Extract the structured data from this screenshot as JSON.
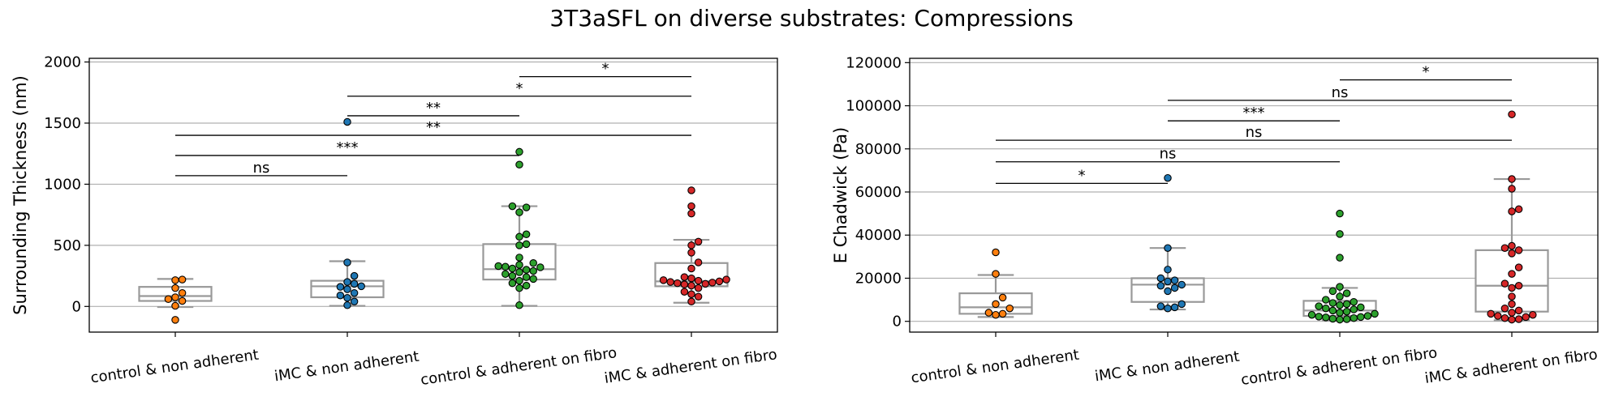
{
  "figure_title": "3T3aSFL on diverse substrates: Compressions",
  "colors": {
    "control & non adherent": "#ff7f0e",
    "iMC & non adherent": "#1f77b4",
    "control & adherent on fibro": "#2ca02c",
    "iMC & adherent on fibro": "#d62728",
    "box": "#999999",
    "grid": "#b0b0b0"
  },
  "chart_data": [
    {
      "type": "box",
      "title": "",
      "ylabel": "Surrounding Thickness (nm)",
      "xlabel": "",
      "grid": "y",
      "ylim": [
        -210,
        2030
      ],
      "yticks": [
        0,
        500,
        1000,
        1500,
        2000
      ],
      "categories": [
        "control & non adherent",
        "iMC & non adherent",
        "control & adherent on fibro",
        "iMC & adherent on fibro"
      ],
      "boxes": [
        {
          "whisker_low": -5,
          "q1": 45,
          "median": 85,
          "q3": 160,
          "whisker_high": 225
        },
        {
          "whisker_low": 5,
          "q1": 75,
          "median": 165,
          "q3": 210,
          "whisker_high": 370
        },
        {
          "whisker_low": 5,
          "q1": 220,
          "median": 305,
          "q3": 510,
          "whisker_high": 820
        },
        {
          "whisker_low": 30,
          "q1": 165,
          "median": 205,
          "q3": 355,
          "whisker_high": 545
        }
      ],
      "points": [
        [
          220,
          215,
          150,
          110,
          75,
          60,
          45,
          5,
          -110
        ],
        [
          1510,
          360,
          250,
          200,
          185,
          165,
          160,
          140,
          110,
          90,
          70,
          40,
          10
        ],
        [
          1265,
          1160,
          820,
          810,
          770,
          590,
          570,
          510,
          500,
          400,
          355,
          340,
          330,
          325,
          320,
          310,
          300,
          290,
          280,
          265,
          250,
          240,
          225,
          210,
          190,
          170,
          150,
          10
        ],
        [
          950,
          820,
          760,
          530,
          500,
          440,
          360,
          310,
          240,
          230,
          220,
          215,
          210,
          205,
          200,
          195,
          190,
          185,
          180,
          170,
          150,
          120,
          100,
          80,
          40
        ]
      ],
      "annotations": [
        {
          "from": 0,
          "to": 1,
          "y": 1070,
          "text": "ns"
        },
        {
          "from": 0,
          "to": 2,
          "y": 1235,
          "text": "***"
        },
        {
          "from": 0,
          "to": 3,
          "y": 1400,
          "text": "**"
        },
        {
          "from": 1,
          "to": 2,
          "y": 1560,
          "text": "**"
        },
        {
          "from": 1,
          "to": 3,
          "y": 1720,
          "text": "*"
        },
        {
          "from": 2,
          "to": 3,
          "y": 1880,
          "text": "*"
        }
      ]
    },
    {
      "type": "box",
      "title": "",
      "ylabel": "E Chadwick (Pa)",
      "xlabel": "",
      "grid": "y",
      "ylim": [
        -5000,
        122000
      ],
      "yticks": [
        0,
        20000,
        40000,
        60000,
        80000,
        100000,
        120000
      ],
      "categories": [
        "control & non adherent",
        "iMC & non adherent",
        "control & adherent on fibro",
        "iMC & adherent on fibro"
      ],
      "boxes": [
        {
          "whisker_low": 2000,
          "q1": 3500,
          "median": 6500,
          "q3": 13000,
          "whisker_high": 21500
        },
        {
          "whisker_low": 5500,
          "q1": 9000,
          "median": 17000,
          "q3": 20000,
          "whisker_high": 34000
        },
        {
          "whisker_low": 500,
          "q1": 2500,
          "median": 5000,
          "q3": 9500,
          "whisker_high": 15500
        },
        {
          "whisker_low": 500,
          "q1": 4500,
          "median": 16500,
          "q3": 33000,
          "whisker_high": 66000
        }
      ],
      "points": [
        [
          32000,
          22000,
          11000,
          8000,
          6000,
          4000,
          3500,
          3000
        ],
        [
          66500,
          34000,
          24000,
          20000,
          19000,
          18500,
          17000,
          16500,
          15500,
          14000,
          8000,
          7000,
          6500,
          6000
        ],
        [
          50000,
          40500,
          29500,
          16000,
          14000,
          13000,
          11500,
          10000,
          9000,
          8500,
          8000,
          7500,
          7000,
          6500,
          6000,
          5500,
          5000,
          4500,
          4000,
          3500,
          3000,
          2500,
          2200,
          2000,
          1800,
          1500,
          1200,
          1000,
          800
        ],
        [
          96000,
          66000,
          61500,
          52000,
          51000,
          35000,
          34000,
          33000,
          31500,
          25000,
          22000,
          17500,
          16500,
          15500,
          11500,
          8000,
          6000,
          5000,
          4000,
          3500,
          3000,
          2500,
          2000,
          1500,
          1000,
          800
        ]
      ],
      "annotations": [
        {
          "from": 0,
          "to": 1,
          "y": 64000,
          "text": "*"
        },
        {
          "from": 0,
          "to": 2,
          "y": 74000,
          "text": "ns"
        },
        {
          "from": 0,
          "to": 3,
          "y": 84000,
          "text": "ns"
        },
        {
          "from": 1,
          "to": 2,
          "y": 93000,
          "text": "***"
        },
        {
          "from": 1,
          "to": 3,
          "y": 102500,
          "text": "ns"
        },
        {
          "from": 2,
          "to": 3,
          "y": 112000,
          "text": "*"
        }
      ]
    }
  ]
}
